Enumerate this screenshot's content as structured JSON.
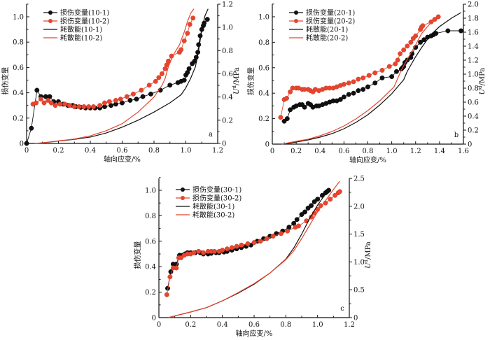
{
  "chart_data": [
    {
      "id": "a",
      "type": "line",
      "panel_label": "a",
      "xlabel": "轴向应变/%",
      "ylabel": "损伤变量",
      "y2label": "U^d/MPa",
      "xlim": [
        0,
        1.2
      ],
      "ylim": [
        0,
        1.1
      ],
      "y2lim": [
        0,
        1.2
      ],
      "xticks": [
        "0",
        "0.2",
        "0.4",
        "0.6",
        "0.8",
        "1.0",
        "1.2"
      ],
      "yticks": [
        "0",
        "0.2",
        "0.4",
        "0.6",
        "0.8",
        "1.0"
      ],
      "y2ticks": [
        "0",
        "0.2",
        "0.4",
        "0.6",
        "0.8",
        "1.0",
        "1.2"
      ],
      "legend": [
        "损伤变量(10-1)",
        "损伤变量(10-2)",
        "耗散能(10-1)",
        "耗散能(10-2)"
      ],
      "legend_position": "top-left",
      "series": [
        {
          "name": "损伤变量(10-1)",
          "axis": "left",
          "color": "#111111",
          "markers": true,
          "x": [
            0,
            0.03,
            0.065,
            0.09,
            0.12,
            0.145,
            0.17,
            0.2,
            0.23,
            0.26,
            0.29,
            0.31,
            0.34,
            0.37,
            0.4,
            0.43,
            0.46,
            0.49,
            0.53,
            0.56,
            0.6,
            0.65,
            0.69,
            0.73,
            0.78,
            0.84,
            0.9,
            0.95,
            0.97,
            0.99,
            1.0,
            1.01,
            1.02,
            1.04,
            1.055,
            1.065,
            1.075,
            1.08,
            1.09,
            1.1,
            1.11,
            1.115,
            1.135
          ],
          "y": [
            0,
            0.12,
            0.42,
            0.37,
            0.37,
            0.37,
            0.33,
            0.33,
            0.31,
            0.3,
            0.3,
            0.29,
            0.285,
            0.28,
            0.28,
            0.28,
            0.28,
            0.29,
            0.3,
            0.31,
            0.32,
            0.34,
            0.35,
            0.37,
            0.39,
            0.42,
            0.46,
            0.48,
            0.49,
            0.5,
            0.54,
            0.56,
            0.59,
            0.63,
            0.65,
            0.68,
            0.72,
            0.78,
            0.85,
            0.9,
            0.93,
            0.95,
            0.98
          ]
        },
        {
          "name": "损伤变量(10-2)",
          "axis": "left",
          "color": "#e8452f",
          "markers": true,
          "x": [
            0.04,
            0.06,
            0.09,
            0.11,
            0.135,
            0.155,
            0.18,
            0.21,
            0.24,
            0.27,
            0.3,
            0.33,
            0.36,
            0.39,
            0.42,
            0.46,
            0.49,
            0.52,
            0.56,
            0.59,
            0.63,
            0.67,
            0.72,
            0.77,
            0.81,
            0.83,
            0.85,
            0.87,
            0.88,
            0.89,
            0.91,
            0.96,
            0.97,
            0.99,
            1.01,
            1.025,
            1.045
          ],
          "y": [
            0.31,
            0.32,
            0.35,
            0.32,
            0.34,
            0.32,
            0.3,
            0.31,
            0.31,
            0.3,
            0.29,
            0.29,
            0.29,
            0.29,
            0.29,
            0.3,
            0.32,
            0.33,
            0.34,
            0.35,
            0.37,
            0.39,
            0.42,
            0.46,
            0.49,
            0.52,
            0.55,
            0.59,
            0.62,
            0.65,
            0.69,
            0.72,
            0.74,
            0.81,
            0.87,
            0.94,
            0.99
          ]
        },
        {
          "name": "耗散能(10-1)",
          "axis": "right",
          "color": "#111111",
          "markers": false,
          "x": [
            0.05,
            0.1,
            0.2,
            0.3,
            0.4,
            0.5,
            0.6,
            0.7,
            0.8,
            0.9,
            0.97,
            1.0,
            1.03,
            1.06,
            1.08,
            1.1,
            1.12,
            1.14
          ],
          "y": [
            0,
            0.005,
            0.02,
            0.035,
            0.055,
            0.09,
            0.14,
            0.2,
            0.27,
            0.35,
            0.42,
            0.48,
            0.56,
            0.66,
            0.8,
            0.98,
            1.1,
            1.16
          ]
        },
        {
          "name": "耗散能(10-2)",
          "axis": "right",
          "color": "#e8452f",
          "markers": false,
          "x": [
            0.05,
            0.1,
            0.2,
            0.3,
            0.4,
            0.5,
            0.6,
            0.7,
            0.8,
            0.85,
            0.87,
            0.89,
            0.92,
            0.96,
            0.99,
            1.01,
            1.03,
            1.05
          ],
          "y": [
            0,
            0.005,
            0.022,
            0.038,
            0.065,
            0.11,
            0.17,
            0.27,
            0.4,
            0.5,
            0.56,
            0.66,
            0.76,
            0.85,
            0.96,
            1.05,
            1.12,
            1.16
          ]
        }
      ]
    },
    {
      "id": "b",
      "type": "line",
      "panel_label": "b",
      "xlabel": "轴向应变/%",
      "ylabel": "损伤变量",
      "y2label": "U^d/MPa",
      "xlim": [
        0,
        1.6
      ],
      "ylim": [
        0,
        1.1
      ],
      "y2lim": [
        0,
        2.0
      ],
      "xticks": [
        "0",
        "0.2",
        "0.4",
        "0.6",
        "0.8",
        "1.0",
        "1.2",
        "1.4",
        "1.6"
      ],
      "yticks": [
        "0",
        "0.2",
        "0.4",
        "0.6",
        "0.8",
        "1.0"
      ],
      "y2ticks": [
        "0",
        "0.2",
        "0.4",
        "0.6",
        "0.8",
        "1.0",
        "1.2",
        "1.4",
        "1.6",
        "1.8",
        "2.0"
      ],
      "legend": [
        "损伤变量(20-1)",
        "损伤变量(20-2)",
        "耗散能(20-1)",
        "耗散能(20-2)"
      ],
      "legend_position": "top-left",
      "series": [
        {
          "name": "损伤变量(20-1)",
          "axis": "left",
          "color": "#111111",
          "markers": true,
          "x": [
            0.1,
            0.125,
            0.15,
            0.18,
            0.2,
            0.23,
            0.25,
            0.27,
            0.3,
            0.32,
            0.34,
            0.37,
            0.39,
            0.42,
            0.45,
            0.48,
            0.51,
            0.54,
            0.57,
            0.6,
            0.64,
            0.68,
            0.72,
            0.76,
            0.8,
            0.86,
            0.92,
            1.0,
            1.04,
            1.08,
            1.09,
            1.1,
            1.11,
            1.13,
            1.16,
            1.17,
            1.2,
            1.24,
            1.27,
            1.3,
            1.33,
            1.35,
            1.37,
            1.47,
            1.58
          ],
          "y": [
            0.18,
            0.2,
            0.27,
            0.29,
            0.3,
            0.31,
            0.31,
            0.29,
            0.32,
            0.31,
            0.29,
            0.3,
            0.3,
            0.31,
            0.32,
            0.33,
            0.34,
            0.34,
            0.35,
            0.37,
            0.39,
            0.4,
            0.42,
            0.43,
            0.45,
            0.48,
            0.52,
            0.53,
            0.57,
            0.59,
            0.6,
            0.61,
            0.64,
            0.66,
            0.68,
            0.71,
            0.76,
            0.8,
            0.82,
            0.84,
            0.85,
            0.86,
            0.87,
            0.89,
            0.89
          ]
        },
        {
          "name": "损伤变量(20-2)",
          "axis": "left",
          "color": "#e8452f",
          "markers": true,
          "x": [
            0.07,
            0.1,
            0.12,
            0.15,
            0.17,
            0.2,
            0.22,
            0.25,
            0.27,
            0.3,
            0.32,
            0.34,
            0.36,
            0.39,
            0.42,
            0.45,
            0.48,
            0.51,
            0.54,
            0.57,
            0.6,
            0.64,
            0.68,
            0.72,
            0.76,
            0.81,
            0.86,
            0.92,
            0.98,
            1.03,
            1.05,
            1.07,
            1.1,
            1.13,
            1.16,
            1.18,
            1.2,
            1.24,
            1.25,
            1.26,
            1.33,
            1.36,
            1.39
          ],
          "y": [
            0.21,
            0.35,
            0.36,
            0.41,
            0.44,
            0.44,
            0.44,
            0.43,
            0.43,
            0.43,
            0.42,
            0.41,
            0.43,
            0.42,
            0.43,
            0.44,
            0.44,
            0.44,
            0.45,
            0.46,
            0.47,
            0.48,
            0.49,
            0.51,
            0.52,
            0.54,
            0.56,
            0.58,
            0.61,
            0.63,
            0.66,
            0.71,
            0.74,
            0.77,
            0.8,
            0.83,
            0.85,
            0.9,
            0.92,
            0.93,
            0.96,
            0.98,
            1.0
          ]
        },
        {
          "name": "耗散能(20-1)",
          "axis": "right",
          "color": "#111111",
          "markers": false,
          "x": [
            0.1,
            0.2,
            0.3,
            0.4,
            0.5,
            0.6,
            0.7,
            0.8,
            0.9,
            1.0,
            1.1,
            1.13,
            1.16,
            1.2,
            1.25,
            1.3,
            1.35,
            1.4,
            1.5,
            1.58
          ],
          "y": [
            0,
            0.03,
            0.06,
            0.1,
            0.15,
            0.22,
            0.31,
            0.42,
            0.56,
            0.72,
            0.92,
            1.04,
            1.13,
            1.25,
            1.38,
            1.5,
            1.6,
            1.68,
            1.8,
            1.88
          ]
        },
        {
          "name": "耗散能(20-2)",
          "axis": "right",
          "color": "#e8452f",
          "markers": false,
          "x": [
            0.08,
            0.2,
            0.3,
            0.4,
            0.5,
            0.6,
            0.7,
            0.8,
            0.9,
            1.02,
            1.05,
            1.08,
            1.12,
            1.16,
            1.2,
            1.25,
            1.3,
            1.35,
            1.38
          ],
          "y": [
            0,
            0.04,
            0.07,
            0.12,
            0.18,
            0.26,
            0.36,
            0.48,
            0.62,
            0.82,
            0.94,
            1.06,
            1.18,
            1.3,
            1.42,
            1.58,
            1.68,
            1.78,
            1.82
          ]
        }
      ]
    },
    {
      "id": "c",
      "type": "line",
      "panel_label": "c",
      "xlabel": "轴向应变/%",
      "ylabel": "损伤变量",
      "y2label": "U^d/MPa",
      "xlim": [
        0,
        1.2
      ],
      "ylim": [
        0,
        1.1
      ],
      "y2lim": [
        0,
        2.5
      ],
      "xticks": [
        "0",
        "0.2",
        "0.4",
        "0.6",
        "0.8",
        "1.0",
        "1.2"
      ],
      "yticks": [
        "0",
        "0.2",
        "0.4",
        "0.6",
        "0.8",
        "1.0"
      ],
      "y2ticks": [
        "0",
        "0.5",
        "1.0",
        "1.5",
        "2.0",
        "2.5"
      ],
      "legend": [
        "损伤变量(30-1)",
        "损伤变量(30-2)",
        "耗散能(30-1)",
        "耗散能(30-2)"
      ],
      "legend_position": "top-left",
      "series": [
        {
          "name": "损伤变量(30-1)",
          "axis": "left",
          "color": "#111111",
          "markers": true,
          "x": [
            0.055,
            0.075,
            0.09,
            0.11,
            0.13,
            0.15,
            0.165,
            0.18,
            0.2,
            0.23,
            0.26,
            0.28,
            0.31,
            0.33,
            0.36,
            0.38,
            0.41,
            0.43,
            0.46,
            0.49,
            0.52,
            0.55,
            0.58,
            0.62,
            0.66,
            0.7,
            0.74,
            0.78,
            0.82,
            0.85,
            0.87,
            0.9,
            0.92,
            0.94,
            0.96,
            0.98,
            1.0,
            1.03,
            1.05,
            1.06,
            1.07
          ],
          "y": [
            0.23,
            0.36,
            0.42,
            0.42,
            0.49,
            0.49,
            0.5,
            0.51,
            0.51,
            0.51,
            0.51,
            0.5,
            0.5,
            0.505,
            0.51,
            0.51,
            0.515,
            0.52,
            0.53,
            0.54,
            0.55,
            0.56,
            0.57,
            0.6,
            0.62,
            0.64,
            0.66,
            0.68,
            0.71,
            0.74,
            0.77,
            0.81,
            0.83,
            0.86,
            0.88,
            0.91,
            0.93,
            0.96,
            0.98,
            0.99,
            1.0
          ]
        },
        {
          "name": "损伤变量(30-2)",
          "axis": "left",
          "color": "#e8452f",
          "markers": true,
          "x": [
            0.05,
            0.07,
            0.09,
            0.11,
            0.125,
            0.14,
            0.16,
            0.18,
            0.2,
            0.22,
            0.25,
            0.28,
            0.31,
            0.33,
            0.35,
            0.38,
            0.4,
            0.43,
            0.46,
            0.49,
            0.52,
            0.56,
            0.6,
            0.64,
            0.68,
            0.72,
            0.77,
            0.81,
            0.86,
            0.88,
            0.93,
            0.96,
            0.98,
            1.0,
            1.02,
            1.05,
            1.08,
            1.11,
            1.13,
            1.14
          ],
          "y": [
            0.18,
            0.32,
            0.39,
            0.39,
            0.47,
            0.47,
            0.49,
            0.5,
            0.5,
            0.51,
            0.52,
            0.51,
            0.52,
            0.52,
            0.52,
            0.52,
            0.53,
            0.54,
            0.55,
            0.56,
            0.57,
            0.58,
            0.59,
            0.6,
            0.62,
            0.64,
            0.66,
            0.68,
            0.71,
            0.72,
            0.76,
            0.79,
            0.82,
            0.85,
            0.88,
            0.9,
            0.93,
            0.96,
            0.98,
            0.99
          ]
        },
        {
          "name": "耗散能(30-1)",
          "axis": "right",
          "color": "#111111",
          "markers": false,
          "x": [
            0.06,
            0.1,
            0.2,
            0.3,
            0.4,
            0.5,
            0.6,
            0.7,
            0.8,
            0.85,
            0.9,
            0.95,
            1.0,
            1.04,
            1.07
          ],
          "y": [
            0,
            0.03,
            0.1,
            0.18,
            0.3,
            0.44,
            0.6,
            0.8,
            1.05,
            1.25,
            1.5,
            1.78,
            2.02,
            2.18,
            2.28
          ]
        },
        {
          "name": "耗散能(30-2)",
          "axis": "right",
          "color": "#e8452f",
          "markers": false,
          "x": [
            0.06,
            0.1,
            0.2,
            0.3,
            0.4,
            0.5,
            0.6,
            0.7,
            0.8,
            0.85,
            0.9,
            0.95,
            1.0,
            1.05,
            1.1,
            1.14
          ],
          "y": [
            0,
            0.03,
            0.1,
            0.18,
            0.3,
            0.45,
            0.61,
            0.8,
            1.04,
            1.2,
            1.42,
            1.66,
            1.9,
            2.1,
            2.3,
            2.45
          ]
        }
      ]
    }
  ]
}
